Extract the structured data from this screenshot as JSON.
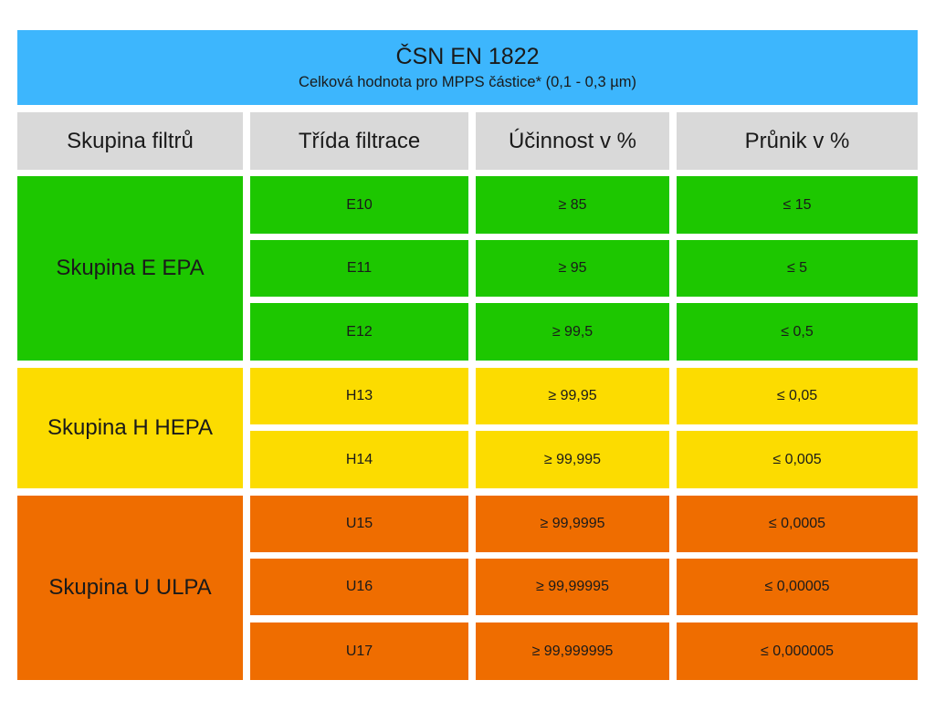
{
  "header": {
    "title": "ČSN EN 1822",
    "subtitle": "Celková hodnota pro MPPS částice* (0,1 - 0,3 µm)"
  },
  "columns": [
    "Skupina filtrů",
    "Třída filtrace",
    "Účinnost v %",
    "Průnik v %"
  ],
  "groups": [
    {
      "name": "Skupina E EPA",
      "color": "#1dc700",
      "rows": [
        {
          "class": "E10",
          "efficiency": "≥ 85",
          "penetration": "≤ 15"
        },
        {
          "class": "E11",
          "efficiency": "≥ 95",
          "penetration": "≤ 5"
        },
        {
          "class": "E12",
          "efficiency": "≥ 99,5",
          "penetration": "≤ 0,5"
        }
      ]
    },
    {
      "name": "Skupina H HEPA",
      "color": "#fcdc00",
      "rows": [
        {
          "class": "H13",
          "efficiency": "≥ 99,95",
          "penetration": "≤  0,05"
        },
        {
          "class": "H14",
          "efficiency": "≥ 99,995",
          "penetration": "≤ 0,005"
        }
      ]
    },
    {
      "name": "Skupina U ULPA",
      "color": "#ef6d00",
      "rows": [
        {
          "class": "U15",
          "efficiency": "≥ 99,9995",
          "penetration": "≤ 0,0005"
        },
        {
          "class": "U16",
          "efficiency": "≥ 99,99995",
          "penetration": "≤ 0,00005"
        },
        {
          "class": "U17",
          "efficiency": "≥ 99,999995",
          "penetration": "≤ 0,000005"
        }
      ]
    }
  ]
}
